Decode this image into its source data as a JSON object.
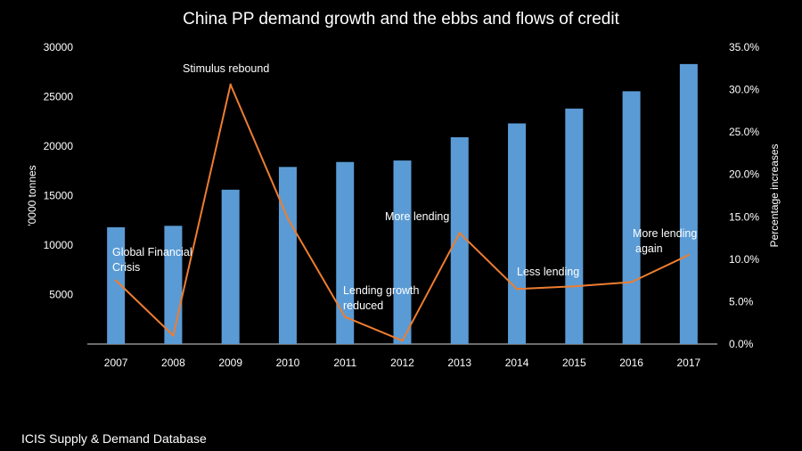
{
  "chart_data": {
    "type": "bar+line",
    "title": "China PP demand growth and the ebbs and flows of credit",
    "categories": [
      "2007",
      "2008",
      "2009",
      "2010",
      "2011",
      "2012",
      "2013",
      "2014",
      "2015",
      "2016",
      "2017"
    ],
    "series": [
      {
        "type": "bar",
        "axis": "left",
        "color": "#5b9bd5",
        "values": [
          11800,
          11950,
          15600,
          17900,
          18400,
          18550,
          20900,
          22300,
          23800,
          25550,
          28300
        ]
      },
      {
        "type": "line",
        "axis": "right",
        "color": "#ed7d31",
        "values": [
          7.5,
          1.0,
          30.6,
          14.8,
          3.2,
          0.4,
          13.1,
          6.5,
          6.8,
          7.3,
          10.5
        ]
      }
    ],
    "ylabel": "'0000 tonnes",
    "ylim": [
      0,
      30000
    ],
    "yticks": [
      "5000",
      "10000",
      "15000",
      "20000",
      "25000",
      "30000"
    ],
    "y2label": "Percentage increases",
    "y2lim": [
      0,
      35
    ],
    "y2ticks": [
      "0.0%",
      "5.0%",
      "10.0%",
      "15.0%",
      "20.0%",
      "25.0%",
      "30.0%",
      "35.0%"
    ],
    "grid": false,
    "annotations": [
      {
        "lines": [
          "Global Financial",
          "Crisis"
        ],
        "category": "2007"
      },
      {
        "lines": [
          "Stimulus rebound"
        ],
        "category": "2009"
      },
      {
        "lines": [
          "Lending growth",
          "reduced"
        ],
        "category": "2011"
      },
      {
        "lines": [
          "More lending"
        ],
        "category": "2013"
      },
      {
        "lines": [
          "Less lending"
        ],
        "category": "2015"
      },
      {
        "lines": [
          "More lending",
          "again"
        ],
        "category": "2017"
      }
    ]
  },
  "source": "ICIS Supply & Demand Database"
}
